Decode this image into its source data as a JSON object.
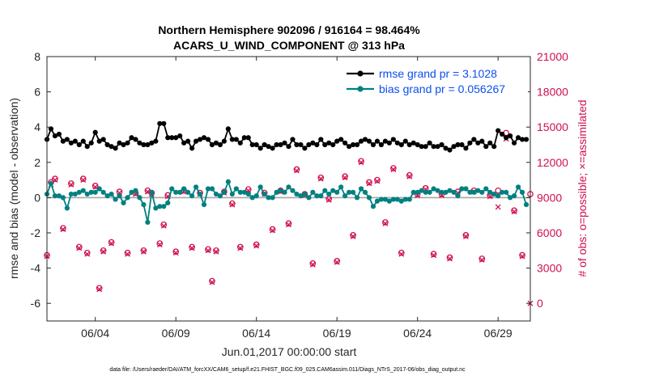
{
  "chart_data": {
    "type": "line",
    "title": "Northern Hemisphere 902096 / 916164 = 98.464%",
    "subtitle": "ACARS_U_WIND_COMPONENT @ 313 hPa",
    "ylabel": "rmse and bias (model - observation)",
    "ylabel_right": "# of obs: o=possible; ×=assimilated",
    "xlabel": "Jun.01,2017 00:00:00 start",
    "footnote": "data file: /Users/raeder/DAI/ATM_forcXX/CAM6_setup/f.e21.FHIST_BGC.f09_025.CAM6assim.011/Diags_NTrS_2017-06/obs_diag_output.nc",
    "ylim": [
      -7,
      8
    ],
    "yticks": [
      -6,
      -4,
      -2,
      0,
      2,
      4,
      6,
      8
    ],
    "ytick_labels": [
      "-6",
      "-4",
      "-2",
      "0",
      "2",
      "4",
      "6",
      "8"
    ],
    "y2lim": [
      -1500,
      21000
    ],
    "y2ticks": [
      0,
      3000,
      6000,
      9000,
      12000,
      15000,
      18000,
      21000
    ],
    "y2tick_labels": [
      "0",
      "3000",
      "6000",
      "9000",
      "12000",
      "15000",
      "18000",
      "21000"
    ],
    "xlim": [
      1.0,
      31.0
    ],
    "xticks": [
      4,
      9,
      14,
      19,
      24,
      29
    ],
    "xtick_labels": [
      "06/04",
      "06/09",
      "06/14",
      "06/19",
      "06/24",
      "06/29"
    ],
    "legend": {
      "position": "top-right",
      "entries": [
        "rmse grand pr = 3.1028",
        "bias grand pr = 0.056267"
      ]
    },
    "colors": {
      "rmse": "#000000",
      "bias": "#008080",
      "obs": "#d0104c",
      "zero_line": "#a6a6a6",
      "legend_text": "#0b4ff0"
    },
    "series": [
      {
        "name": "rmse",
        "x": [
          1.0,
          1.25,
          1.5,
          1.75,
          2.0,
          2.25,
          2.5,
          2.75,
          3.0,
          3.25,
          3.5,
          3.75,
          4.0,
          4.25,
          4.5,
          4.75,
          5.0,
          5.25,
          5.5,
          5.75,
          6.0,
          6.25,
          6.5,
          6.75,
          7.0,
          7.25,
          7.5,
          7.75,
          8.0,
          8.25,
          8.5,
          8.75,
          9.0,
          9.25,
          9.5,
          9.75,
          10.0,
          10.25,
          10.5,
          10.75,
          11.0,
          11.25,
          11.5,
          11.75,
          12.0,
          12.25,
          12.5,
          12.75,
          13.0,
          13.25,
          13.5,
          13.75,
          14.0,
          14.25,
          14.5,
          14.75,
          15.0,
          15.25,
          15.5,
          15.75,
          16.0,
          16.25,
          16.5,
          16.75,
          17.0,
          17.25,
          17.5,
          17.75,
          18.0,
          18.25,
          18.5,
          18.75,
          19.0,
          19.25,
          19.5,
          19.75,
          20.0,
          20.25,
          20.5,
          20.75,
          21.0,
          21.25,
          21.5,
          21.75,
          22.0,
          22.25,
          22.5,
          22.75,
          23.0,
          23.25,
          23.5,
          23.75,
          24.0,
          24.25,
          24.5,
          24.75,
          25.0,
          25.25,
          25.5,
          25.75,
          26.0,
          26.25,
          26.5,
          26.75,
          27.0,
          27.25,
          27.5,
          27.75,
          28.0,
          28.25,
          28.5,
          28.75,
          29.0,
          29.25,
          29.5,
          29.75,
          30.0,
          30.25,
          30.5,
          30.75
        ],
        "values": [
          3.3,
          3.9,
          3.5,
          3.6,
          3.2,
          3.3,
          3.1,
          3.2,
          3.0,
          3.2,
          2.9,
          3.1,
          3.7,
          3.2,
          3.3,
          3.0,
          2.9,
          2.8,
          3.1,
          3.0,
          3.1,
          3.4,
          3.3,
          3.1,
          3.0,
          3.0,
          3.1,
          3.2,
          4.2,
          4.2,
          3.4,
          3.4,
          3.4,
          3.5,
          3.1,
          3.2,
          2.8,
          3.2,
          3.3,
          3.4,
          3.3,
          3.0,
          3.1,
          3.0,
          3.2,
          3.9,
          3.3,
          3.3,
          3.1,
          3.4,
          3.4,
          3.0,
          3.0,
          2.8,
          3.0,
          2.9,
          2.8,
          3.0,
          3.0,
          3.1,
          2.9,
          3.3,
          3.0,
          3.0,
          2.8,
          3.0,
          3.1,
          3.0,
          3.3,
          3.0,
          3.1,
          3.0,
          3.2,
          3.3,
          3.1,
          2.9,
          3.0,
          3.0,
          3.2,
          3.3,
          3.2,
          3.0,
          3.2,
          3.0,
          3.2,
          3.1,
          3.3,
          3.1,
          3.0,
          3.2,
          3.0,
          3.1,
          3.0,
          2.9,
          2.9,
          3.1,
          2.9,
          2.9,
          3.0,
          2.8,
          2.7,
          2.9,
          3.0,
          3.0,
          2.8,
          3.1,
          3.3,
          3.1,
          3.2,
          2.9,
          3.1,
          2.9,
          3.8,
          3.6,
          3.4,
          3.5,
          3.1,
          3.4,
          3.3,
          3.3
        ]
      },
      {
        "name": "bias",
        "x": [
          1.0,
          1.25,
          1.5,
          1.75,
          2.0,
          2.25,
          2.5,
          2.75,
          3.0,
          3.25,
          3.5,
          3.75,
          4.0,
          4.25,
          4.5,
          4.75,
          5.0,
          5.25,
          5.5,
          5.75,
          6.0,
          6.25,
          6.5,
          6.75,
          7.0,
          7.25,
          7.5,
          7.75,
          8.0,
          8.25,
          8.5,
          8.75,
          9.0,
          9.25,
          9.5,
          9.75,
          10.0,
          10.25,
          10.5,
          10.75,
          11.0,
          11.25,
          11.5,
          11.75,
          12.0,
          12.25,
          12.5,
          12.75,
          13.0,
          13.25,
          13.5,
          13.75,
          14.0,
          14.25,
          14.5,
          14.75,
          15.0,
          15.25,
          15.5,
          15.75,
          16.0,
          16.25,
          16.5,
          16.75,
          17.0,
          17.25,
          17.5,
          17.75,
          18.0,
          18.25,
          18.5,
          18.75,
          19.0,
          19.25,
          19.5,
          19.75,
          20.0,
          20.25,
          20.5,
          20.75,
          21.0,
          21.25,
          21.5,
          21.75,
          22.0,
          22.25,
          22.5,
          22.75,
          23.0,
          23.25,
          23.5,
          23.75,
          24.0,
          24.25,
          24.5,
          24.75,
          25.0,
          25.25,
          25.5,
          25.75,
          26.0,
          26.25,
          26.5,
          26.75,
          27.0,
          27.25,
          27.5,
          27.75,
          28.0,
          28.25,
          28.5,
          28.75,
          29.0,
          29.25,
          29.5,
          29.75,
          30.0,
          30.25,
          30.5,
          30.75
        ],
        "values": [
          0.2,
          0.8,
          0.1,
          0.1,
          0.0,
          -0.6,
          0.2,
          0.2,
          0.3,
          0.4,
          0.2,
          0.3,
          0.3,
          0.5,
          0.3,
          0.1,
          0.2,
          -0.1,
          0.1,
          -0.3,
          0.0,
          0.3,
          0.4,
          0.0,
          -0.4,
          -1.4,
          0.3,
          -0.6,
          -0.5,
          -0.5,
          -0.3,
          0.5,
          0.3,
          0.3,
          0.5,
          0.3,
          0.1,
          0.6,
          0.2,
          -0.4,
          0.5,
          0.5,
          0.2,
          0.1,
          0.3,
          0.9,
          0.2,
          0.5,
          0.3,
          0.3,
          0.2,
          0.0,
          0.1,
          0.6,
          0.2,
          0.0,
          0.0,
          0.3,
          0.4,
          0.3,
          0.6,
          0.4,
          0.2,
          0.1,
          0.2,
          0.0,
          0.3,
          0.1,
          0.1,
          0.4,
          0.2,
          0.4,
          0.3,
          0.6,
          0.1,
          0.3,
          0.3,
          0.0,
          0.5,
          0.3,
          0.0,
          -0.5,
          -0.2,
          -0.1,
          -0.1,
          -0.2,
          -0.1,
          -0.1,
          -0.2,
          -0.1,
          -0.1,
          0.3,
          0.3,
          0.4,
          0.3,
          0.3,
          0.5,
          0.4,
          0.3,
          0.3,
          0.4,
          0.3,
          0.1,
          0.5,
          0.5,
          0.3,
          0.3,
          0.4,
          0.3,
          0.5,
          0.3,
          0.2,
          0.1,
          0.3,
          0.3,
          0.0,
          0.1,
          0.6,
          0.3,
          -0.4
        ]
      }
    ],
    "obs_possible": {
      "x": [
        1.0,
        1.25,
        1.5,
        2.0,
        2.5,
        3.0,
        3.25,
        3.5,
        4.0,
        4.25,
        4.5,
        5.0,
        5.5,
        6.0,
        6.5,
        7.0,
        7.25,
        7.5,
        8.0,
        8.25,
        8.5,
        9.0,
        9.5,
        10.0,
        10.5,
        11.0,
        11.25,
        11.5,
        12.0,
        12.5,
        13.0,
        13.5,
        14.0,
        14.5,
        15.0,
        15.5,
        16.0,
        16.5,
        17.0,
        17.5,
        18.0,
        18.5,
        19.0,
        19.5,
        20.0,
        20.5,
        21.0,
        21.5,
        22.0,
        22.5,
        23.0,
        23.5,
        24.0,
        24.5,
        25.0,
        25.5,
        26.0,
        26.5,
        27.0,
        27.5,
        28.0,
        28.5,
        29.0,
        29.5,
        30.0,
        30.5,
        31.0
      ],
      "values": [
        4100,
        10300,
        10600,
        6400,
        10200,
        4800,
        10600,
        4300,
        10000,
        1300,
        4500,
        5200,
        9500,
        4300,
        9400,
        4500,
        9600,
        9400,
        5100,
        6700,
        9200,
        4400,
        9600,
        4800,
        9400,
        4600,
        1900,
        4500,
        9500,
        8500,
        4800,
        9700,
        5000,
        9400,
        6300,
        9600,
        6800,
        11400,
        9300,
        3400,
        10700,
        8900,
        3600,
        10800,
        5800,
        12100,
        10300,
        10500,
        6900,
        11500,
        4300,
        10900,
        9300,
        9800,
        4200,
        9300,
        3900,
        9500,
        5800,
        9600,
        3800,
        9200,
        9600,
        14500,
        7900,
        4100,
        9300
      ]
    },
    "obs_assimilated": {
      "x": [
        1.0,
        1.25,
        1.5,
        2.0,
        2.5,
        3.0,
        3.25,
        3.5,
        4.0,
        4.25,
        4.5,
        5.0,
        5.5,
        6.0,
        6.5,
        7.0,
        7.25,
        7.5,
        8.0,
        8.25,
        8.5,
        9.0,
        9.5,
        10.0,
        10.5,
        11.0,
        11.25,
        11.5,
        12.0,
        12.5,
        13.0,
        13.5,
        14.0,
        14.5,
        15.0,
        15.5,
        16.0,
        16.5,
        17.0,
        17.5,
        18.0,
        18.5,
        19.0,
        19.5,
        20.0,
        20.5,
        21.0,
        21.5,
        22.0,
        22.5,
        23.0,
        23.5,
        24.0,
        24.5,
        25.0,
        25.5,
        26.0,
        26.5,
        27.0,
        27.5,
        28.0,
        28.5,
        29.0,
        29.5,
        30.0,
        30.5,
        31.0
      ],
      "values": [
        4000,
        10100,
        10500,
        6300,
        10100,
        4700,
        10500,
        4200,
        9900,
        1200,
        4400,
        5100,
        9400,
        4200,
        9300,
        4400,
        9500,
        9300,
        5000,
        6600,
        9100,
        4300,
        9500,
        4700,
        9300,
        4500,
        1800,
        4400,
        9400,
        8400,
        4700,
        9600,
        4900,
        9300,
        6200,
        9500,
        6700,
        11300,
        9200,
        3300,
        10600,
        8800,
        3500,
        10700,
        5700,
        12000,
        10200,
        10400,
        6800,
        11400,
        4200,
        10800,
        9200,
        9700,
        4100,
        9200,
        3800,
        9400,
        5700,
        9500,
        3700,
        9100,
        8200,
        14000,
        7800,
        4000,
        0
      ]
    }
  }
}
